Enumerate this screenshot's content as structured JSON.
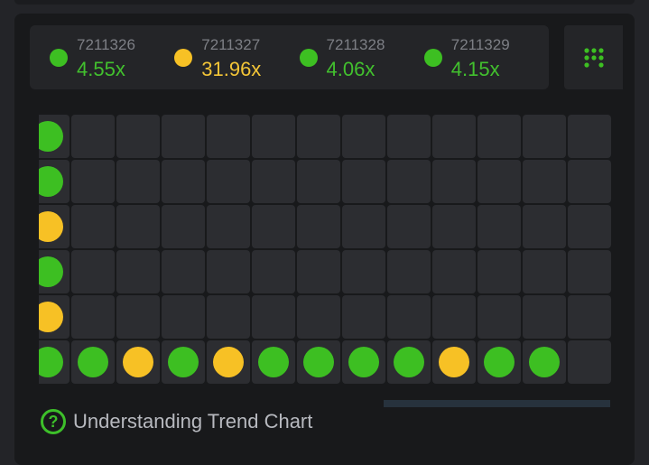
{
  "colors": {
    "green": "#3dbf22",
    "yellow": "#f7c125"
  },
  "history": [
    {
      "id": "7211326",
      "multiplier": "4.55x",
      "color": "green"
    },
    {
      "id": "7211327",
      "multiplier": "31.96x",
      "color": "yellow"
    },
    {
      "id": "7211328",
      "multiplier": "4.06x",
      "color": "green"
    },
    {
      "id": "7211329",
      "multiplier": "4.15x",
      "color": "green"
    }
  ],
  "grid_button_icon": "grid-dots-icon",
  "trend_chart": {
    "rows": 6,
    "columns": [
      [
        "green",
        "green",
        "yellow",
        "green",
        "yellow",
        "green"
      ],
      [
        null,
        null,
        null,
        null,
        null,
        "green"
      ],
      [
        null,
        null,
        null,
        null,
        null,
        "yellow"
      ],
      [
        null,
        null,
        null,
        null,
        null,
        "green"
      ],
      [
        null,
        null,
        null,
        null,
        null,
        "yellow"
      ],
      [
        null,
        null,
        null,
        null,
        null,
        "green"
      ],
      [
        null,
        null,
        null,
        null,
        null,
        "green"
      ],
      [
        null,
        null,
        null,
        null,
        null,
        "green"
      ],
      [
        null,
        null,
        null,
        null,
        null,
        "green"
      ],
      [
        null,
        null,
        null,
        null,
        null,
        "yellow"
      ],
      [
        null,
        null,
        null,
        null,
        null,
        "green"
      ],
      [
        null,
        null,
        null,
        null,
        null,
        "green"
      ],
      [
        null,
        null,
        null,
        null,
        null,
        null
      ]
    ]
  },
  "help": {
    "icon": "question-circle-icon",
    "label": "Understanding Trend Chart"
  }
}
